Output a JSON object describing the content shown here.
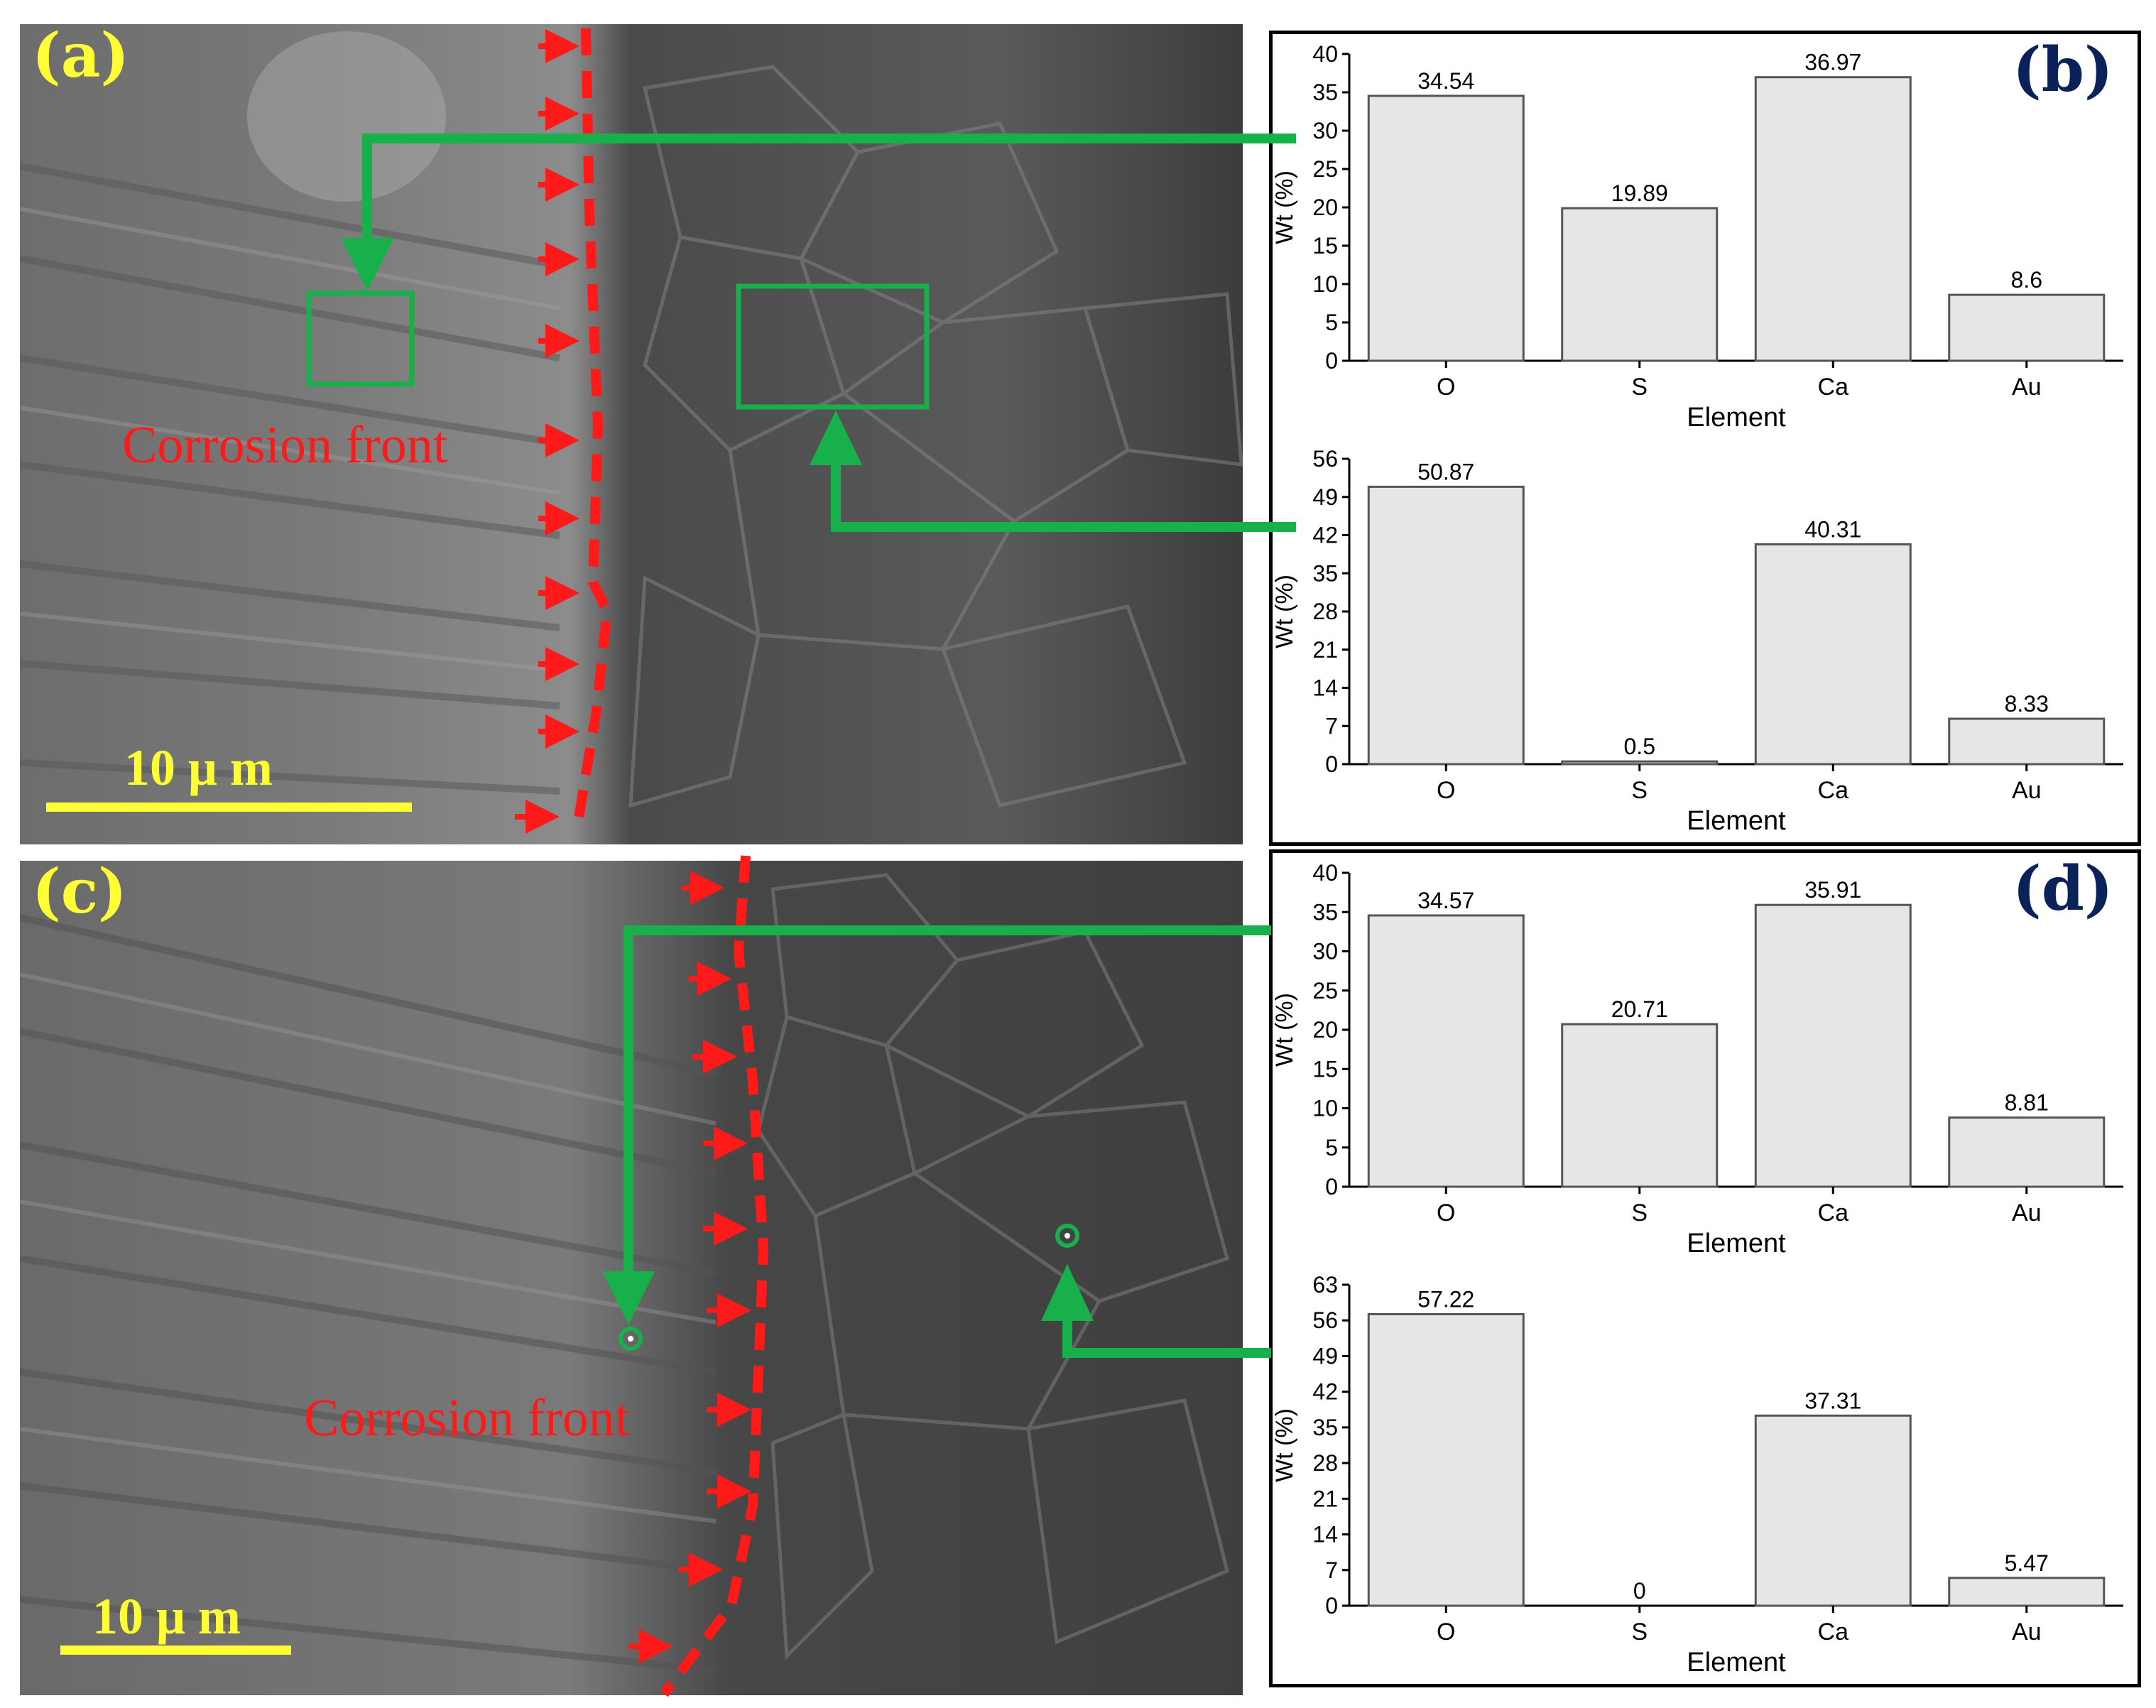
{
  "panels": {
    "a": {
      "label": "(a)",
      "front_text": "Corrosion front",
      "scale_bar": "10 μ m"
    },
    "c": {
      "label": "(c)",
      "front_text": "Corrosion front",
      "scale_bar": "10 μ m"
    },
    "b": {
      "label": "(b)"
    },
    "d": {
      "label": "(d)"
    }
  },
  "colors": {
    "bar_fill": "#e6e6e6",
    "bar_stroke": "#555555",
    "annotation_green": "#18b04a",
    "front_red": "#ff1a1a",
    "label_yellow": "#ffff33",
    "label_navy": "#0b2159"
  },
  "chart_data": [
    {
      "type": "bar",
      "panel": "b-top",
      "categories": [
        "O",
        "S",
        "Ca",
        "Au"
      ],
      "values": [
        34.54,
        19.89,
        36.97,
        8.6
      ],
      "data_labels": [
        "34.54",
        "19.89",
        "36.97",
        "8.6"
      ],
      "xlabel": "Element",
      "ylabel": "Wt (%)",
      "ylim": [
        0,
        40
      ],
      "yticks": [
        "0",
        "5",
        "10",
        "15",
        "20",
        "25",
        "30",
        "35",
        "40"
      ]
    },
    {
      "type": "bar",
      "panel": "b-bottom",
      "categories": [
        "O",
        "S",
        "Ca",
        "Au"
      ],
      "values": [
        50.87,
        0.5,
        40.31,
        8.33
      ],
      "data_labels": [
        "50.87",
        "0.5",
        "40.31",
        "8.33"
      ],
      "xlabel": "Element",
      "ylabel": "Wt (%)",
      "ylim": [
        0,
        56
      ],
      "yticks": [
        "0",
        "7",
        "14",
        "21",
        "28",
        "35",
        "42",
        "49",
        "56"
      ]
    },
    {
      "type": "bar",
      "panel": "d-top",
      "categories": [
        "O",
        "S",
        "Ca",
        "Au"
      ],
      "values": [
        34.57,
        20.71,
        35.91,
        8.81
      ],
      "data_labels": [
        "34.57",
        "20.71",
        "35.91",
        "8.81"
      ],
      "xlabel": "Element",
      "ylabel": "Wt (%)",
      "ylim": [
        0,
        40
      ],
      "yticks": [
        "0",
        "5",
        "10",
        "15",
        "20",
        "25",
        "30",
        "35",
        "40"
      ]
    },
    {
      "type": "bar",
      "panel": "d-bottom",
      "categories": [
        "O",
        "S",
        "Ca",
        "Au"
      ],
      "values": [
        57.22,
        0,
        37.31,
        5.47
      ],
      "data_labels": [
        "57.22",
        "0",
        "37.31",
        "5.47"
      ],
      "xlabel": "Element",
      "ylabel": "Wt (%)",
      "ylim": [
        0,
        63
      ],
      "yticks": [
        "0",
        "7",
        "14",
        "21",
        "28",
        "35",
        "42",
        "49",
        "56",
        "63"
      ]
    }
  ]
}
